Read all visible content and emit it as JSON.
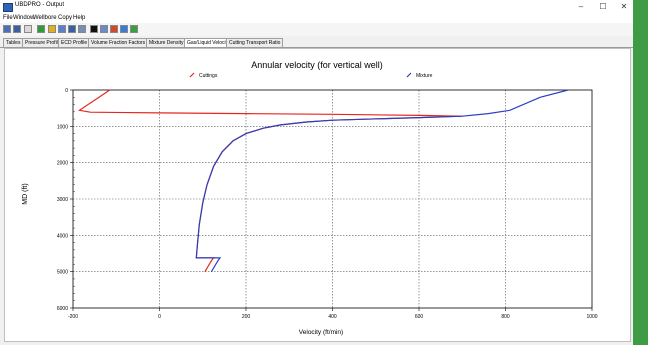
{
  "window": {
    "title": "UBDPRO - Output",
    "minimize_glyph": "–",
    "maximize_glyph": "☐",
    "close_glyph": "✕"
  },
  "menu": [
    "File",
    "Window",
    "Wellbore",
    "Copy",
    "Help"
  ],
  "toolbar_icons": [
    "print-icon",
    "save-icon",
    "copy-icon",
    "export-icon",
    "chart-icon",
    "table-icon",
    "zoom-icon",
    "settings-icon",
    "color-icon",
    "grid-icon",
    "legend-icon",
    "image-icon",
    "run-icon"
  ],
  "tabs": [
    {
      "label": "Tables",
      "active": false
    },
    {
      "label": "Pressure Profile",
      "active": false
    },
    {
      "label": "ECD Profile",
      "active": false
    },
    {
      "label": "Volume Fraction Factors",
      "active": false
    },
    {
      "label": "Mixture Density",
      "active": false
    },
    {
      "label": "Gas/Liquid Velocity",
      "active": true
    },
    {
      "label": "Cutting Transport Ratio",
      "active": false
    }
  ],
  "colors": {
    "cuttings": "#e8261e",
    "mixture": "#2a3fbf",
    "accent_green": "#3f9b45"
  },
  "chart_data": {
    "type": "line",
    "title": "Annular velocity (for vertical well)",
    "xlabel": "Velocity (ft/min)",
    "ylabel": "MD (ft)",
    "xlim": [
      -200,
      1000
    ],
    "ylim": [
      0,
      6000
    ],
    "y_inverted": true,
    "x_ticks": [
      "-200",
      "0",
      "200",
      "400",
      "600",
      "800",
      "1000"
    ],
    "y_ticks": [
      "0",
      "1000",
      "2000",
      "3000",
      "4000",
      "5000",
      "6000"
    ],
    "grid": true,
    "legend_position": "top",
    "series": [
      {
        "name": "Cuttings",
        "color": "#e8261e",
        "points": [
          [
            -115,
            0
          ],
          [
            -185,
            560
          ],
          [
            -160,
            610
          ],
          [
            0,
            630
          ],
          [
            200,
            650
          ],
          [
            400,
            670
          ],
          [
            600,
            700
          ],
          [
            700,
            720
          ],
          [
            600,
            760
          ],
          [
            400,
            830
          ],
          [
            340,
            880
          ],
          [
            280,
            960
          ],
          [
            240,
            1050
          ],
          [
            200,
            1200
          ],
          [
            170,
            1400
          ],
          [
            145,
            1700
          ],
          [
            125,
            2100
          ],
          [
            110,
            2600
          ],
          [
            100,
            3100
          ],
          [
            92,
            3700
          ],
          [
            88,
            4200
          ],
          [
            85,
            4620
          ],
          [
            125,
            4620
          ],
          [
            120,
            4700
          ],
          [
            115,
            4800
          ],
          [
            110,
            4900
          ],
          [
            105,
            5000
          ]
        ]
      },
      {
        "name": "Mixture",
        "color": "#2a3fbf",
        "points": [
          [
            945,
            0
          ],
          [
            880,
            200
          ],
          [
            810,
            560
          ],
          [
            760,
            650
          ],
          [
            700,
            720
          ],
          [
            600,
            760
          ],
          [
            400,
            830
          ],
          [
            340,
            880
          ],
          [
            280,
            960
          ],
          [
            240,
            1050
          ],
          [
            200,
            1200
          ],
          [
            170,
            1400
          ],
          [
            145,
            1700
          ],
          [
            125,
            2100
          ],
          [
            110,
            2600
          ],
          [
            100,
            3100
          ],
          [
            92,
            3700
          ],
          [
            88,
            4200
          ],
          [
            85,
            4620
          ],
          [
            140,
            4620
          ],
          [
            135,
            4700
          ],
          [
            130,
            4800
          ],
          [
            125,
            4900
          ],
          [
            120,
            5000
          ]
        ]
      }
    ]
  }
}
